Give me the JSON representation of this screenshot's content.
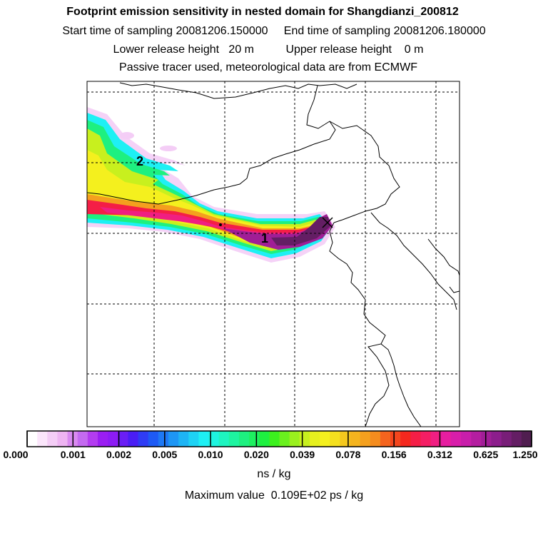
{
  "titles": {
    "line1": "Footprint emission sensitivity in nested domain for Shangdianzi_200812",
    "line2": "Start time of sampling 20081206.150000     End time of sampling 20081206.180000",
    "line3": "Lower release height   20 m          Upper release height    0 m",
    "line4": "Passive tracer used, meteorological data are from ECMWF"
  },
  "chart_data": {
    "type": "heatmap",
    "title": "Footprint emission sensitivity in nested domain for Shangdianzi_200812",
    "colorbar": {
      "ticks": [
        "0.000",
        "0.001",
        "0.002",
        "0.005",
        "0.010",
        "0.020",
        "0.039",
        "0.078",
        "0.156",
        "0.312",
        "0.625",
        "1.250"
      ],
      "units": "ns / kg",
      "colors": [
        "#ffffff",
        "#fbe6fb",
        "#f4cdf6",
        "#eeb4f2",
        "#d98af0",
        "#c46af0",
        "#b33cf0",
        "#9a1ef2",
        "#8d1cf4",
        "#6a1ef4",
        "#4a1ef4",
        "#2f3cf4",
        "#1e5af4",
        "#1e78f4",
        "#1e96f4",
        "#1eb4f4",
        "#1ed2f4",
        "#1ef0f4",
        "#1ef4e0",
        "#1ef4c0",
        "#1ef4a0",
        "#1ef080",
        "#1ef060",
        "#1ef040",
        "#3cf01e",
        "#6af01e",
        "#9af01e",
        "#c8f01e",
        "#e6f01e",
        "#f4f01e",
        "#f4e01e",
        "#f4c81e",
        "#f4b41e",
        "#f4a01e",
        "#f48c1e",
        "#f4641e",
        "#f4461e",
        "#f4281e",
        "#f41e46",
        "#f41e64",
        "#f01e82",
        "#e61ea0",
        "#d81eaa",
        "#c81eaa",
        "#b41ea0",
        "#a01e96",
        "#8c1e8c",
        "#781e78",
        "#641e64",
        "#501e50"
      ]
    },
    "annotations": [
      {
        "text": "1",
        "label": "release point index 1"
      },
      {
        "text": "2",
        "label": "release point index 2"
      }
    ],
    "max_value_text": "Maximum value  0.109E+02 ps / kg"
  }
}
